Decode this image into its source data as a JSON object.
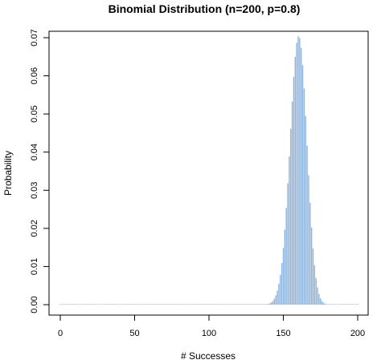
{
  "chart_data": {
    "type": "bar",
    "title": "Binomial Distribution (n=200, p=0.8)",
    "xlabel": "# Successes",
    "ylabel": "Probability",
    "n": 200,
    "p": 0.8,
    "x": [
      0,
      200
    ],
    "xlim": [
      0,
      200
    ],
    "ylim": [
      0,
      0.07
    ],
    "xticks": [
      0,
      50,
      100,
      150,
      200
    ],
    "yticks": [
      0.0,
      0.01,
      0.02,
      0.03,
      0.04,
      0.05,
      0.06,
      0.07
    ],
    "xtick_labels": [
      "0",
      "50",
      "100",
      "150",
      "200"
    ],
    "ytick_labels": [
      "0.00",
      "0.01",
      "0.02",
      "0.03",
      "0.04",
      "0.05",
      "0.06",
      "0.07"
    ],
    "bar_color": "#8fb3d9",
    "grid": false,
    "legend": "none"
  }
}
